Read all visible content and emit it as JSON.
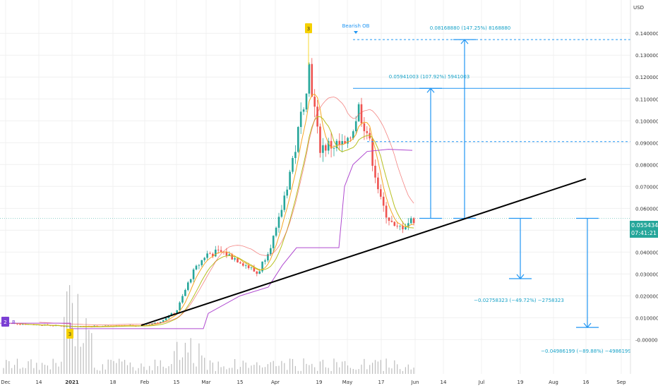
{
  "chart_data": {
    "type": "candlestick",
    "currency_label": "USD",
    "y_axis_ticks": [
      "-0.00000000",
      "0.01000000",
      "0.02000000",
      "0.03000000",
      "0.04000000",
      "0.05000000",
      "0.06000000",
      "0.07000000",
      "0.08000000",
      "0.09000000",
      "0.10000000",
      "0.11000000",
      "0.12000000",
      "0.13000000",
      "0.14000000"
    ],
    "ylim": [
      -0.006,
      0.152
    ],
    "x_axis_ticks": [
      "Dec",
      "14",
      "2021",
      "18",
      "Feb",
      "15",
      "Mar",
      "15",
      "Apr",
      "19",
      "May",
      "17",
      "Jun",
      "14",
      "Jul",
      "19",
      "Aug",
      "16",
      "Sep"
    ],
    "current_price": "0.05543400",
    "countdown": "07:41:21",
    "annotations": {
      "bearish_ob_label": "Bearish OB",
      "marker_3_top": "3",
      "marker_3_bottom": "3",
      "marker_2": "2",
      "marker_b": "B",
      "target_1": "0.05941003 (107.92%) 5941003",
      "target_2": "0.08168880 (147.25%) 8168880",
      "drop_1": "−0.02758323 (−49.72%) −2758323",
      "drop_2": "−0.04986199 (−89.88%) −4986199"
    },
    "levels": {
      "current": 0.05543,
      "target_1": 0.11484,
      "target_2": 0.13712,
      "drop_1": 0.02785,
      "drop_2": 0.00557,
      "dashed_mid": 0.0905
    },
    "trendline": {
      "start": {
        "date_index": 0,
        "value": 0.0065
      },
      "end": {
        "date_index": 1,
        "value": 0.0735
      }
    },
    "series_approx": [
      {
        "t": "Dec",
        "close": 0.0075
      },
      {
        "t": "14",
        "close": 0.0068
      },
      {
        "t": "2021",
        "close": 0.006
      },
      {
        "t": "18",
        "close": 0.0062
      },
      {
        "t": "Feb",
        "close": 0.0065
      },
      {
        "t": "Feb-8",
        "close": 0.008
      },
      {
        "t": "15",
        "close": 0.013
      },
      {
        "t": "Feb-22",
        "close": 0.03
      },
      {
        "t": "Mar",
        "close": 0.039
      },
      {
        "t": "Mar-8",
        "close": 0.04
      },
      {
        "t": "15",
        "close": 0.036
      },
      {
        "t": "Mar-22",
        "close": 0.03
      },
      {
        "t": "Apr",
        "close": 0.05
      },
      {
        "t": "Apr-8",
        "close": 0.09
      },
      {
        "t": "Apr-12",
        "close": 0.125
      },
      {
        "t": "19",
        "close": 0.088
      },
      {
        "t": "Apr-26",
        "close": 0.089
      },
      {
        "t": "May",
        "close": 0.088
      },
      {
        "t": "May-7",
        "close": 0.106
      },
      {
        "t": "May-12",
        "close": 0.095
      },
      {
        "t": "17",
        "close": 0.062
      },
      {
        "t": "May-24",
        "close": 0.05
      },
      {
        "t": "May-31",
        "close": 0.0554
      }
    ]
  },
  "colors": {
    "up": "#26a69a",
    "down": "#ef5350",
    "blue": "#2196f3",
    "trend": "#000000",
    "ma_orange": "#f5a623",
    "ma_olive": "#b8c020",
    "ma_red": "#ef5350",
    "ma_purple": "#b04ad0",
    "volume": "#bdbdbd",
    "grid": "#f0f0f0"
  }
}
